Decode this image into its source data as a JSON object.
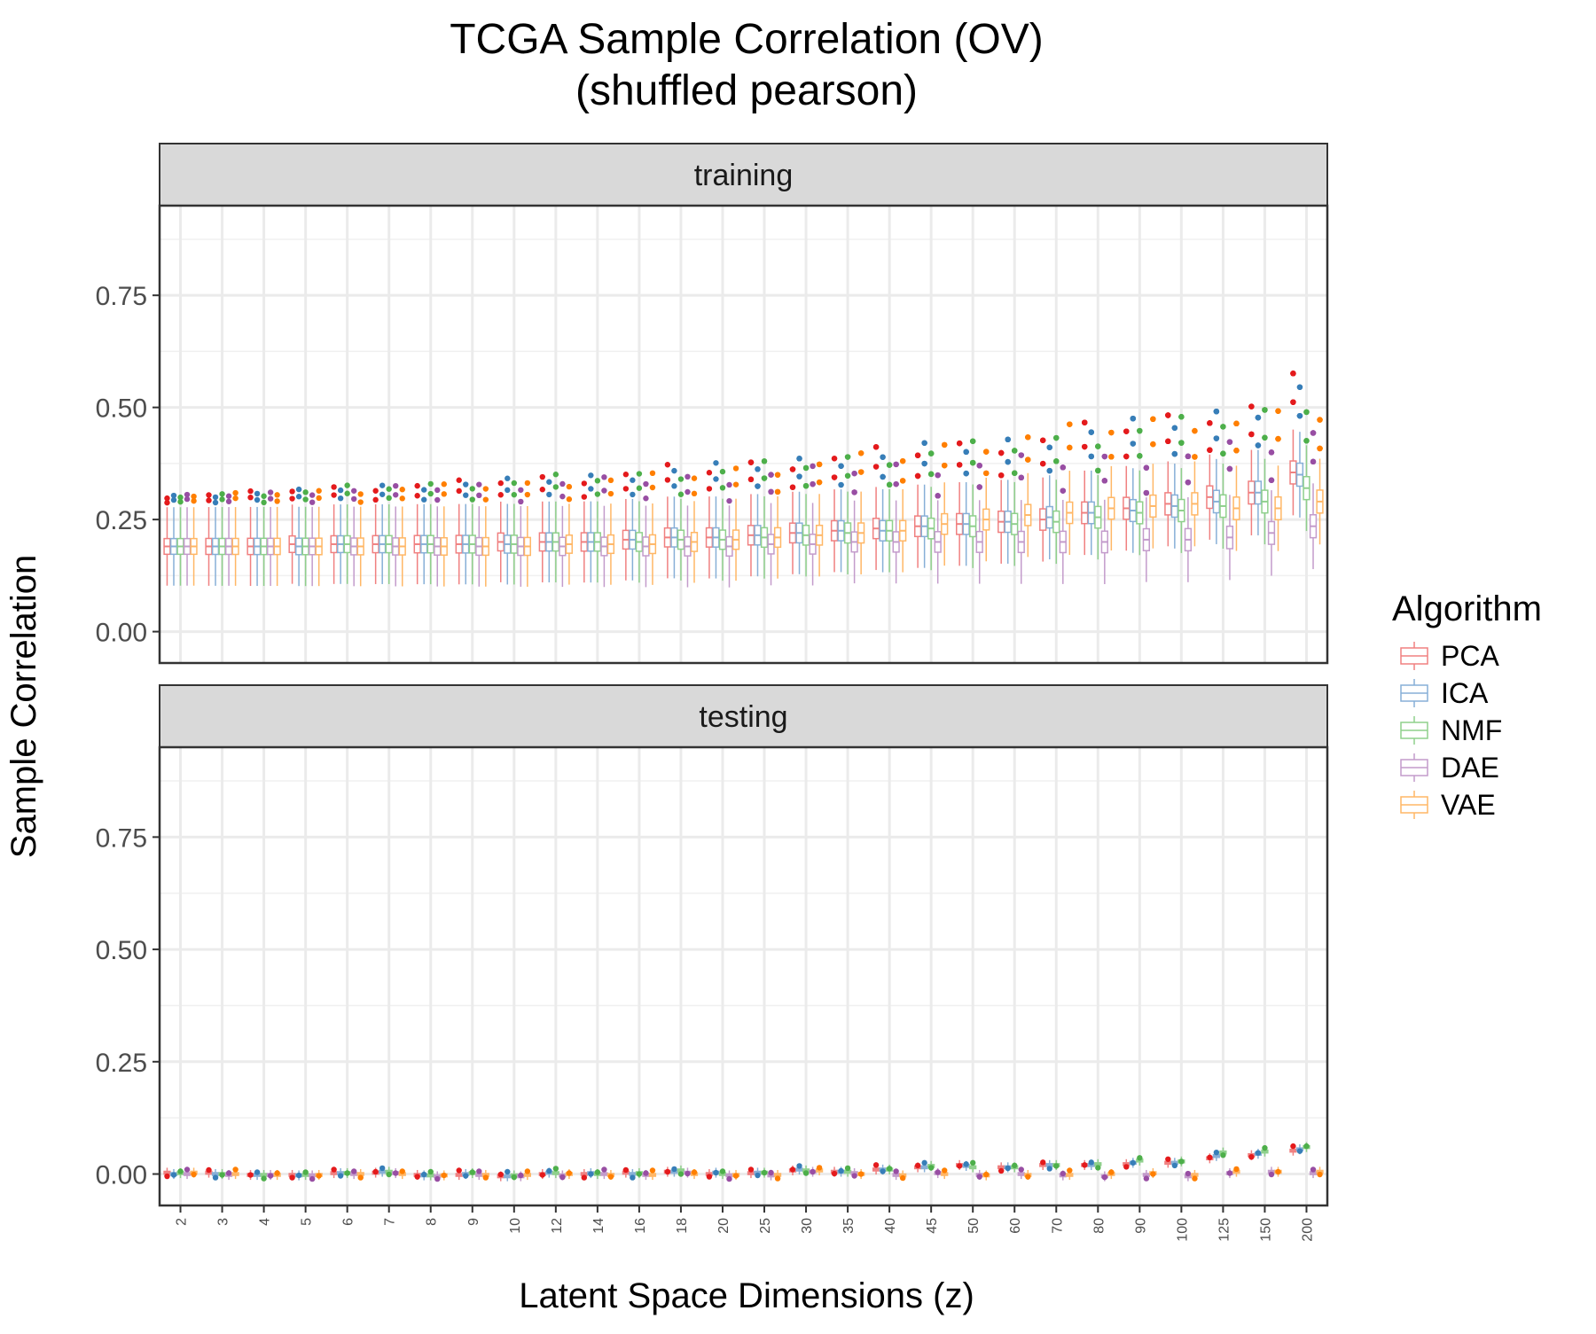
{
  "chart_data": {
    "type": "boxplot",
    "title": "TCGA Sample Correlation (OV)",
    "subtitle": "(shuffled pearson)",
    "xlabel": "Latent Space Dimensions (z)",
    "ylabel": "Sample Correlation",
    "ylim": [
      -0.07,
      0.95
    ],
    "yticks": [
      0.0,
      0.25,
      0.5,
      0.75
    ],
    "ytick_labels": [
      "0.00",
      "0.25",
      "0.50",
      "0.75"
    ],
    "grid": true,
    "legend": {
      "title": "Algorithm",
      "position": "right"
    },
    "categories": [
      "2",
      "3",
      "4",
      "5",
      "6",
      "7",
      "8",
      "9",
      "10",
      "12",
      "14",
      "16",
      "18",
      "20",
      "25",
      "30",
      "35",
      "40",
      "45",
      "50",
      "60",
      "70",
      "80",
      "90",
      "100",
      "125",
      "150",
      "200"
    ],
    "series": [
      {
        "name": "PCA",
        "color": "#E41A1C",
        "box_color": "#F08080"
      },
      {
        "name": "ICA",
        "color": "#377EB8",
        "box_color": "#87AFD7"
      },
      {
        "name": "NMF",
        "color": "#4DAF4A",
        "box_color": "#8FD08C"
      },
      {
        "name": "DAE",
        "color": "#984EA3",
        "box_color": "#C39BCB"
      },
      {
        "name": "VAE",
        "color": "#FF7F00",
        "box_color": "#FFB766"
      }
    ],
    "panels": [
      {
        "name": "training",
        "medians": [
          [
            0.19,
            0.19,
            0.19,
            0.19,
            0.19
          ],
          [
            0.19,
            0.19,
            0.19,
            0.19,
            0.19
          ],
          [
            0.19,
            0.19,
            0.19,
            0.19,
            0.19
          ],
          [
            0.195,
            0.19,
            0.19,
            0.19,
            0.19
          ],
          [
            0.195,
            0.195,
            0.195,
            0.19,
            0.19
          ],
          [
            0.195,
            0.195,
            0.195,
            0.19,
            0.19
          ],
          [
            0.195,
            0.195,
            0.195,
            0.19,
            0.19
          ],
          [
            0.195,
            0.195,
            0.195,
            0.19,
            0.19
          ],
          [
            0.2,
            0.195,
            0.195,
            0.19,
            0.19
          ],
          [
            0.2,
            0.2,
            0.2,
            0.19,
            0.195
          ],
          [
            0.2,
            0.2,
            0.2,
            0.19,
            0.195
          ],
          [
            0.205,
            0.205,
            0.2,
            0.19,
            0.195
          ],
          [
            0.21,
            0.21,
            0.205,
            0.19,
            0.2
          ],
          [
            0.21,
            0.21,
            0.205,
            0.19,
            0.205
          ],
          [
            0.215,
            0.215,
            0.21,
            0.195,
            0.21
          ],
          [
            0.22,
            0.22,
            0.215,
            0.195,
            0.215
          ],
          [
            0.225,
            0.225,
            0.22,
            0.2,
            0.22
          ],
          [
            0.23,
            0.225,
            0.225,
            0.2,
            0.225
          ],
          [
            0.235,
            0.235,
            0.23,
            0.2,
            0.24
          ],
          [
            0.24,
            0.24,
            0.235,
            0.2,
            0.25
          ],
          [
            0.245,
            0.245,
            0.24,
            0.2,
            0.26
          ],
          [
            0.25,
            0.255,
            0.245,
            0.2,
            0.265
          ],
          [
            0.265,
            0.265,
            0.255,
            0.2,
            0.275
          ],
          [
            0.275,
            0.27,
            0.265,
            0.205,
            0.28
          ],
          [
            0.285,
            0.28,
            0.27,
            0.205,
            0.285
          ],
          [
            0.3,
            0.29,
            0.28,
            0.21,
            0.275
          ],
          [
            0.31,
            0.31,
            0.29,
            0.22,
            0.275
          ],
          [
            0.355,
            0.35,
            0.32,
            0.235,
            0.29
          ]
        ]
      },
      {
        "name": "testing",
        "medians": [
          [
            0.003,
            0.0,
            0.002,
            0.0,
            0.003
          ],
          [
            0.003,
            0.0,
            0.0,
            -0.002,
            0.0
          ],
          [
            -0.002,
            -0.002,
            -0.002,
            -0.002,
            -0.002
          ],
          [
            -0.002,
            -0.003,
            -0.002,
            -0.003,
            -0.002
          ],
          [
            0.002,
            0.002,
            0.002,
            0.0,
            0.0
          ],
          [
            0.003,
            0.005,
            0.005,
            0.002,
            0.0
          ],
          [
            -0.002,
            -0.003,
            -0.003,
            -0.005,
            -0.003
          ],
          [
            -0.002,
            0.0,
            0.002,
            -0.002,
            -0.002
          ],
          [
            -0.005,
            -0.005,
            -0.003,
            -0.005,
            -0.002
          ],
          [
            0.0,
            0.003,
            0.002,
            -0.003,
            0.0
          ],
          [
            0.0,
            0.002,
            0.0,
            0.0,
            -0.002
          ],
          [
            0.003,
            0.0,
            0.002,
            -0.002,
            -0.002
          ],
          [
            0.005,
            0.005,
            0.008,
            0.003,
            0.0
          ],
          [
            0.0,
            0.003,
            0.0,
            -0.003,
            -0.002
          ],
          [
            0.002,
            0.003,
            0.003,
            -0.003,
            -0.002
          ],
          [
            0.008,
            0.01,
            0.008,
            0.005,
            0.008
          ],
          [
            0.005,
            0.005,
            0.005,
            0.002,
            0.0
          ],
          [
            0.01,
            0.01,
            0.01,
            -0.002,
            -0.003
          ],
          [
            0.015,
            0.015,
            0.018,
            0.002,
            0.0
          ],
          [
            0.02,
            0.018,
            0.015,
            -0.002,
            -0.003
          ],
          [
            0.015,
            0.015,
            0.015,
            0.0,
            -0.002
          ],
          [
            0.02,
            0.02,
            0.02,
            -0.003,
            -0.002
          ],
          [
            0.02,
            0.02,
            0.022,
            -0.005,
            0.0
          ],
          [
            0.022,
            0.025,
            0.03,
            -0.002,
            0.002
          ],
          [
            0.025,
            0.025,
            0.028,
            -0.005,
            -0.002
          ],
          [
            0.035,
            0.04,
            0.048,
            0.002,
            0.005
          ],
          [
            0.042,
            0.045,
            0.05,
            0.005,
            0.005
          ],
          [
            0.052,
            0.055,
            0.06,
            0.002,
            0.005
          ]
        ]
      }
    ]
  }
}
